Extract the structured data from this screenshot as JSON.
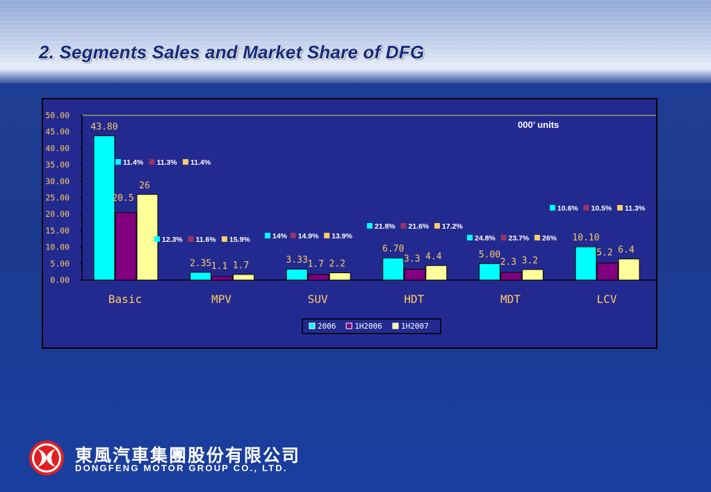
{
  "slide": {
    "title": "2. Segments Sales and Market Share of DFG",
    "units_label": "000’ units"
  },
  "logo": {
    "chinese_name": "東風汽車集團股份有限公司",
    "english_name": "DONGFENG MOTOR GROUP CO., LTD."
  },
  "colors": {
    "series_2006": "#00ffff",
    "series_1H2006": "#800080",
    "series_1H2007": "#ffff99",
    "share_1H2006_marker": "#993366",
    "share_1H2007_marker": "#ffcc66",
    "tick_text": "#ffcc66",
    "value_label": "#ffcc66",
    "category_label": "#ffcc66",
    "plot_bg": "#232a8f"
  },
  "chart_data": {
    "type": "bar",
    "ylim": [
      0,
      50
    ],
    "yticks": [
      "0.00",
      "5.00",
      "10.00",
      "15.00",
      "20.00",
      "25.00",
      "30.00",
      "35.00",
      "40.00",
      "45.00",
      "50.00"
    ],
    "categories": [
      "Basic",
      "MPV",
      "SUV",
      "HDT",
      "MDT",
      "LCV"
    ],
    "series": [
      {
        "name": "2006",
        "values": [
          43.8,
          2.35,
          3.33,
          6.7,
          5.0,
          10.1
        ],
        "labels": [
          "43.80",
          "2.35",
          "3.33",
          "6.70",
          "5.00",
          "10.10"
        ]
      },
      {
        "name": "1H2006",
        "values": [
          20.5,
          1.1,
          1.7,
          3.3,
          2.3,
          5.2
        ],
        "labels": [
          "20.5",
          "1.1",
          "1.7",
          "3.3",
          "2.3",
          "5.2"
        ]
      },
      {
        "name": "1H2007",
        "values": [
          26,
          1.7,
          2.2,
          4.4,
          3.2,
          6.4
        ],
        "labels": [
          "26",
          "1.7",
          "2.2",
          "4.4",
          "3.2",
          "6.4"
        ]
      }
    ],
    "market_share": [
      [
        "11.4%",
        "11.3%",
        "11.4%"
      ],
      [
        "12.3%",
        "11.6%",
        "15.9%"
      ],
      [
        "14%",
        "14.9%",
        "13.9%"
      ],
      [
        "21.8%",
        "21.6%",
        "17.2%"
      ],
      [
        "24.8%",
        "23.7%",
        "26%"
      ],
      [
        "10.6%",
        "10.5%",
        "11.3%"
      ]
    ],
    "legend_placement": "bottom-center",
    "grid": false
  }
}
